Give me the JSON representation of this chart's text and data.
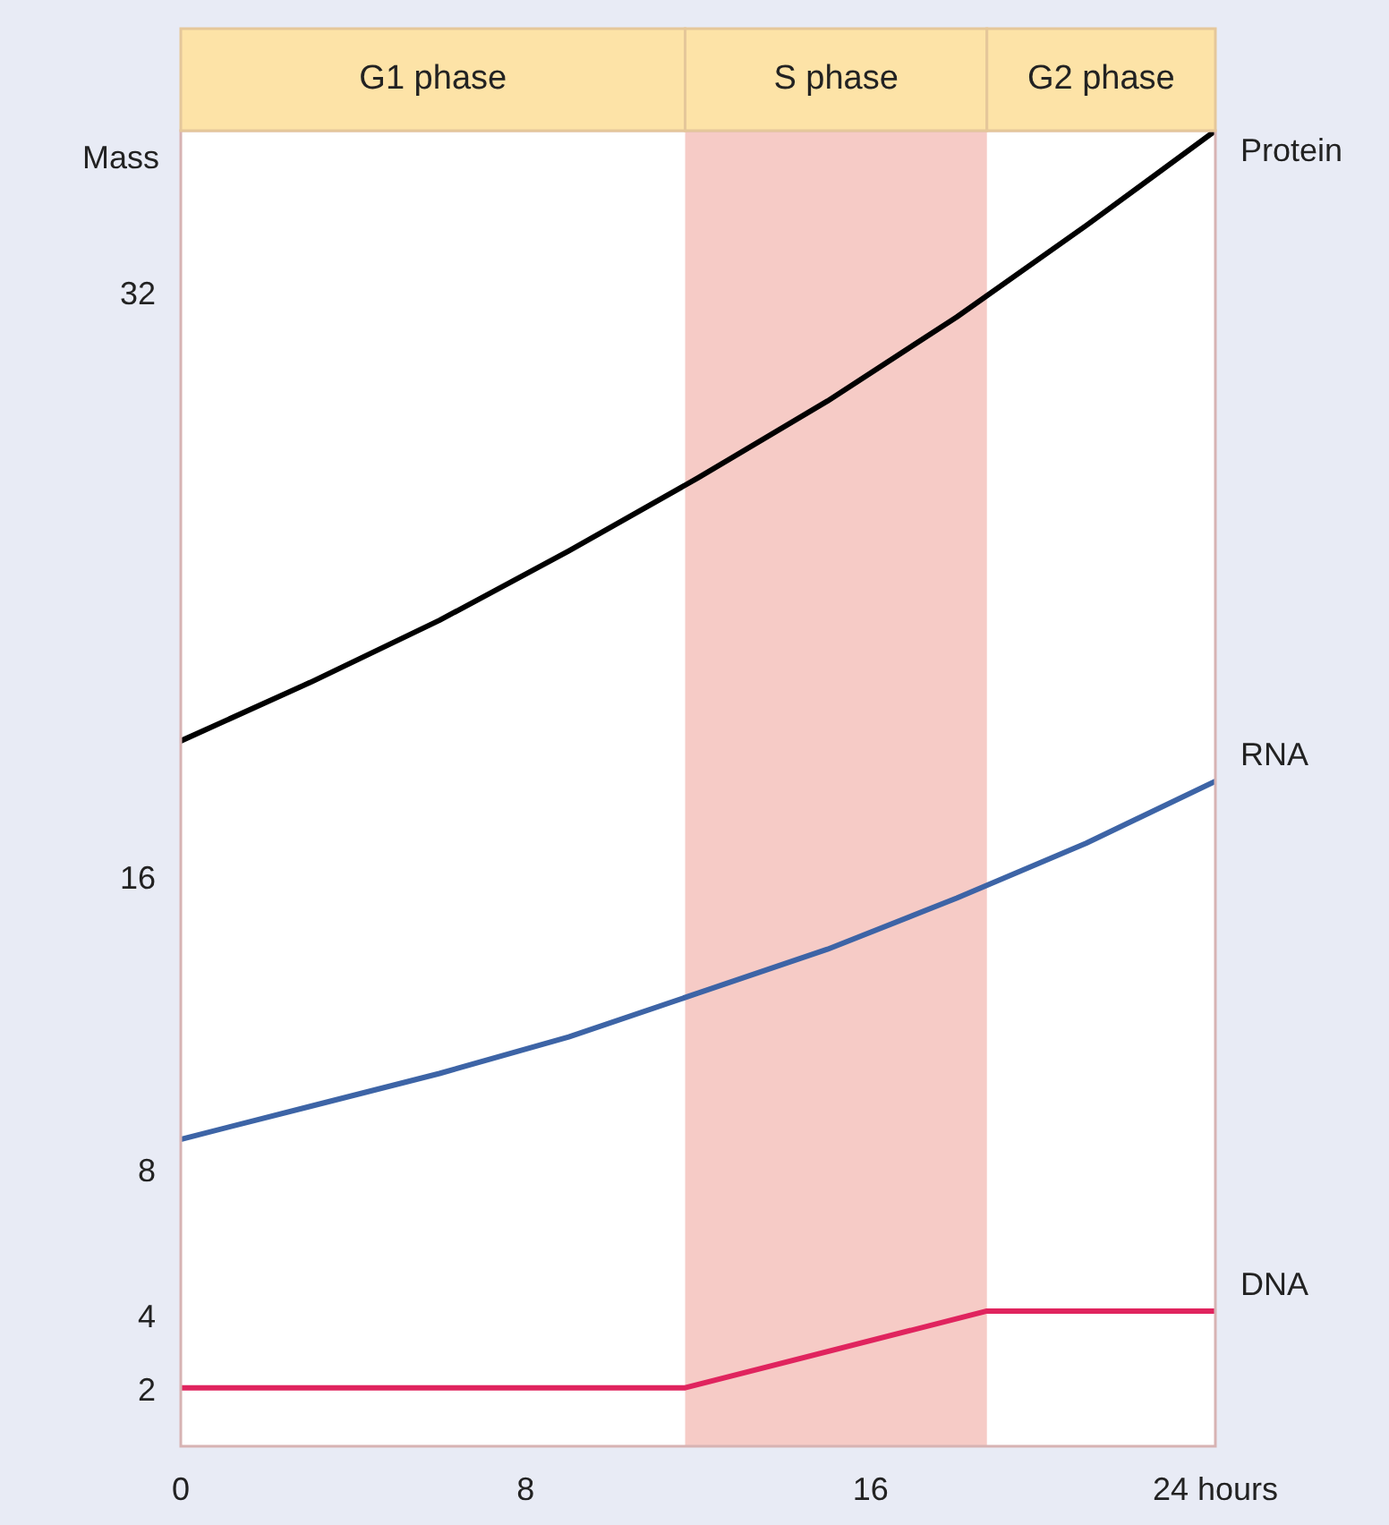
{
  "chart_data": {
    "type": "line",
    "ylabel": "Mass",
    "x": [
      0,
      3,
      6,
      9,
      12,
      15,
      18,
      21,
      24
    ],
    "series": [
      {
        "name": "Protein",
        "color": "#000000",
        "values": [
          19.8,
          21.4,
          23.1,
          25.0,
          27.0,
          29.1,
          31.4,
          33.9,
          36.5
        ]
      },
      {
        "name": "RNA",
        "color": "#3d64a6",
        "values": [
          8.9,
          9.8,
          10.7,
          11.7,
          12.9,
          14.1,
          15.5,
          17.0,
          18.7
        ]
      },
      {
        "name": "DNA",
        "color": "#e0245e",
        "x": [
          0,
          11.7,
          18.7,
          24
        ],
        "values": [
          2.1,
          2.1,
          4.2,
          4.2
        ]
      }
    ],
    "xlim": [
      0,
      24
    ],
    "xticks": [
      0,
      8,
      16,
      {
        "value": 24,
        "label": "24 hours"
      }
    ],
    "ylim": [
      0.5,
      36.5
    ],
    "yticks": [
      2,
      4,
      8,
      16,
      32
    ],
    "bands": [
      {
        "axis": "x",
        "from": 11.7,
        "to": 18.7,
        "label": "S phase",
        "color": "#f6cbc6"
      }
    ],
    "annotations": [
      "G1 phase",
      "G2 phase"
    ],
    "legend": false,
    "marker": "none",
    "line_style": "solid"
  }
}
